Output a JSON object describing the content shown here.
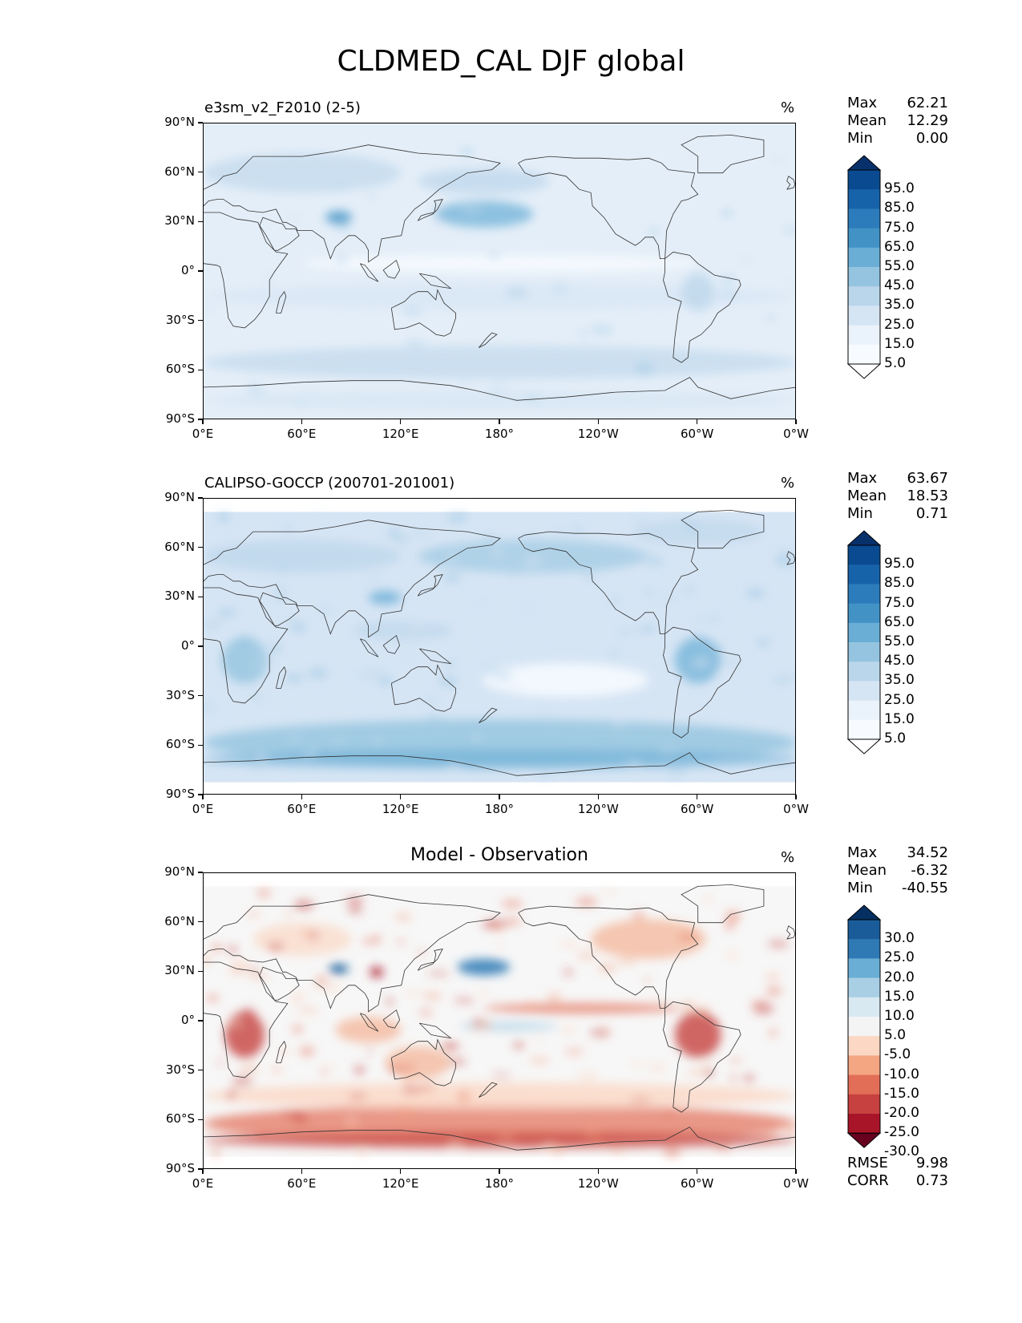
{
  "title": "CLDMED_CAL DJF global",
  "lat_ticks": [
    "90°N",
    "60°N",
    "30°N",
    "0°",
    "30°S",
    "60°S",
    "90°S"
  ],
  "lon_ticks": [
    "0°E",
    "60°E",
    "120°E",
    "180°",
    "120°W",
    "60°W",
    "0°W"
  ],
  "panels": [
    {
      "id": "model",
      "title": "e3sm_v2_F2010 (2-5)",
      "title_style": "left",
      "units": "%",
      "stats": [
        {
          "label": "Max",
          "value": "62.21"
        },
        {
          "label": "Mean",
          "value": "12.29"
        },
        {
          "label": "Min",
          "value": "0.00"
        }
      ],
      "colorbar_labels": [
        "95.0",
        "85.0",
        "75.0",
        "65.0",
        "55.0",
        "45.0",
        "35.0",
        "25.0",
        "15.0",
        "5.0"
      ],
      "colorbar_colors": [
        "#08306b",
        "#0a4a90",
        "#1763aa",
        "#2c7cbb",
        "#4292c6",
        "#6aaed6",
        "#94c4df",
        "#bad6eb",
        "#d6e5f4",
        "#eaf2fb",
        "#f7fbff",
        "#ffffff"
      ],
      "background": "#e4eef8"
    },
    {
      "id": "obs",
      "title": "CALIPSO-GOCCP (200701-201001)",
      "title_style": "left",
      "units": "%",
      "stats": [
        {
          "label": "Max",
          "value": "63.67"
        },
        {
          "label": "Mean",
          "value": "18.53"
        },
        {
          "label": "Min",
          "value": "0.71"
        }
      ],
      "colorbar_labels": [
        "95.0",
        "85.0",
        "75.0",
        "65.0",
        "55.0",
        "45.0",
        "35.0",
        "25.0",
        "15.0",
        "5.0"
      ],
      "colorbar_colors": [
        "#08306b",
        "#0a4a90",
        "#1763aa",
        "#2c7cbb",
        "#4292c6",
        "#6aaed6",
        "#94c4df",
        "#bad6eb",
        "#d6e5f4",
        "#eaf2fb",
        "#f7fbff",
        "#ffffff"
      ],
      "background": "#d6e5f4"
    },
    {
      "id": "diff",
      "title": "Model - Observation",
      "title_style": "center",
      "units": "%",
      "stats": [
        {
          "label": "Max",
          "value": "34.52"
        },
        {
          "label": "Mean",
          "value": "-6.32"
        },
        {
          "label": "Min",
          "value": "-40.55"
        }
      ],
      "colorbar_labels": [
        "30.0",
        "25.0",
        "20.0",
        "15.0",
        "10.0",
        "5.0",
        "-5.0",
        "-10.0",
        "-15.0",
        "-20.0",
        "-25.0",
        "-30.0"
      ],
      "colorbar_colors": [
        "#053061",
        "#1a5c9a",
        "#2f79b5",
        "#6aaed6",
        "#a9cfe5",
        "#d8e9f1",
        "#f4f4f4",
        "#fbd7c4",
        "#f4a582",
        "#e26e57",
        "#c6413f",
        "#a81529",
        "#67001f"
      ],
      "background": "#f7f7f7",
      "metrics": [
        {
          "label": "RMSE",
          "value": "9.98"
        },
        {
          "label": "CORR",
          "value": "0.73"
        }
      ]
    }
  ]
}
